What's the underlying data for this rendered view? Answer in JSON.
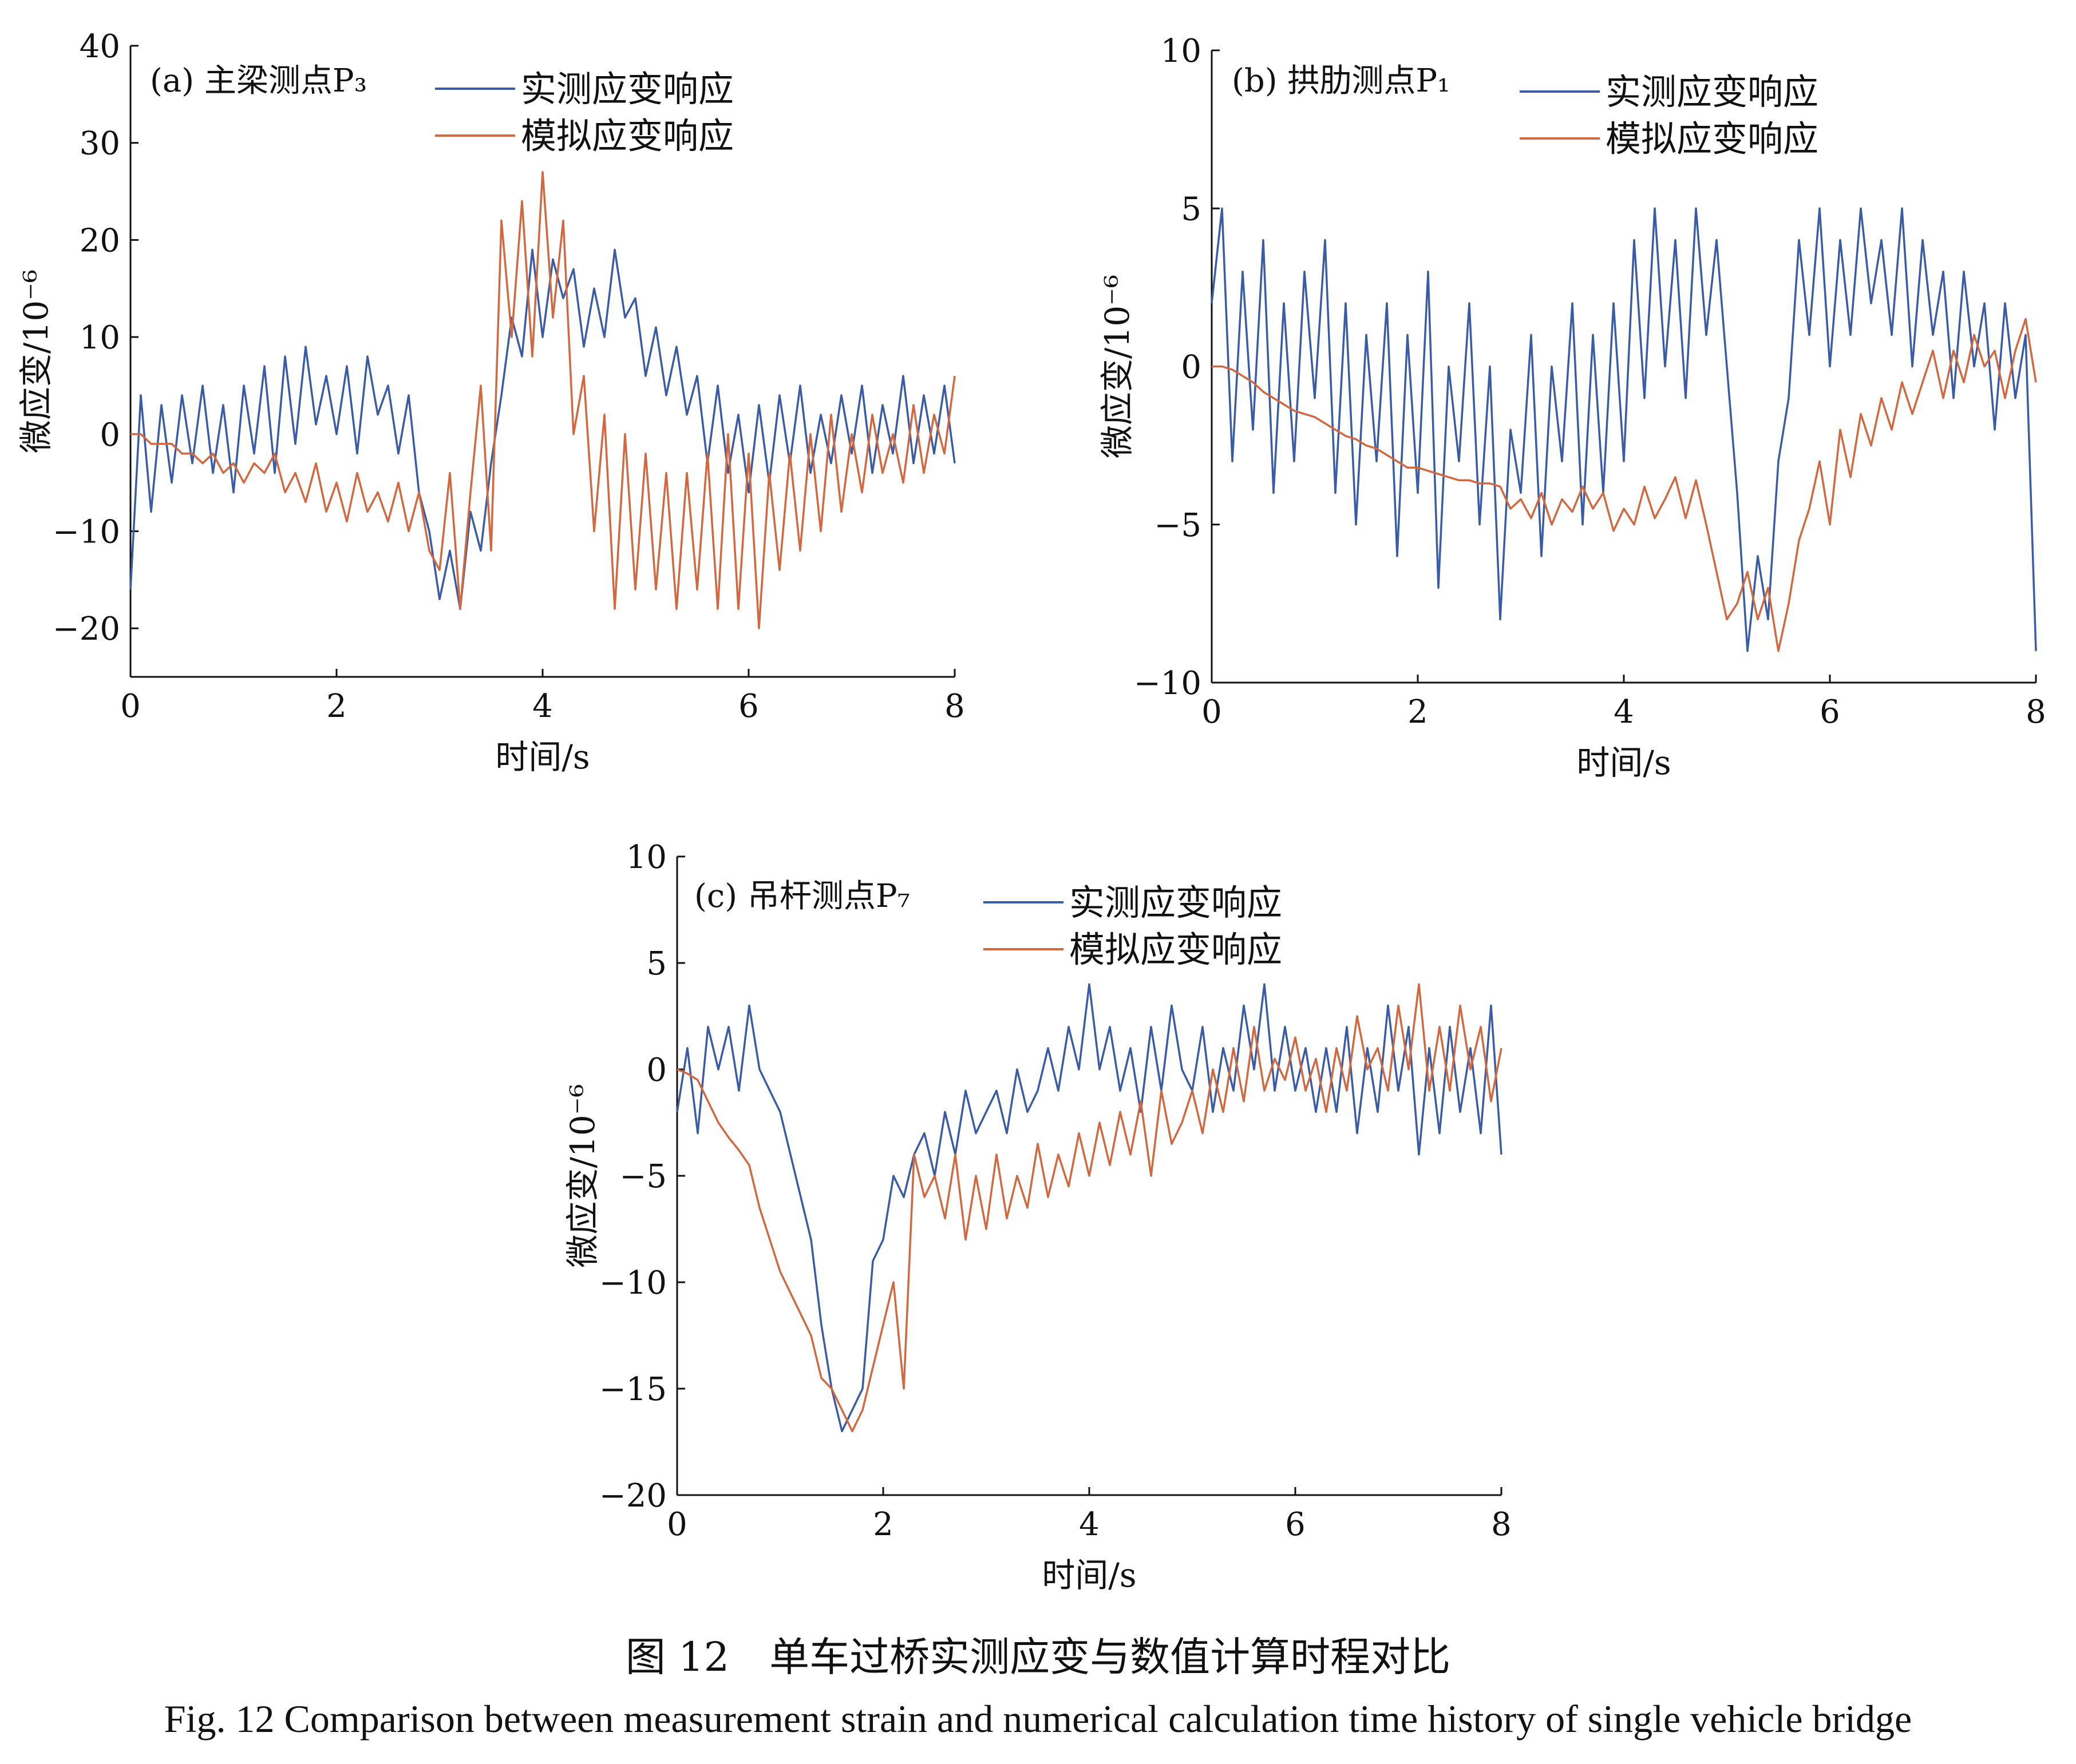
{
  "figure": {
    "caption_cn": "图 12　单车过桥实测应变与数值计算时程对比",
    "caption_en": "Fig. 12  Comparison between measurement strain and numerical calculation time history of single vehicle bridge",
    "series_colors": {
      "measured": "#3a5ba6",
      "simulated": "#d2683f"
    }
  },
  "chart_data": [
    {
      "type": "line",
      "panel": "(a)",
      "title": "(a) 主梁测点P₃",
      "xlabel": "时间/s",
      "ylabel": "微应变/10⁻⁶",
      "xlim": [
        0,
        8
      ],
      "ylim": [
        -25,
        40
      ],
      "xticks": [
        "0",
        "2",
        "4",
        "6",
        "8"
      ],
      "xtick_values": [
        0,
        2,
        4,
        6,
        8
      ],
      "yticks": [
        "−20",
        "−10",
        "0",
        "10",
        "20",
        "30",
        "40"
      ],
      "ytick_values": [
        -20,
        -10,
        0,
        10,
        20,
        30,
        40
      ],
      "legend": [
        "实测应变响应",
        "模拟应变响应"
      ],
      "legend_position": "top-center",
      "series": [
        {
          "name": "实测应变响应",
          "x": [
            0,
            0.1,
            0.2,
            0.3,
            0.4,
            0.5,
            0.6,
            0.7,
            0.8,
            0.9,
            1.0,
            1.1,
            1.2,
            1.3,
            1.4,
            1.5,
            1.6,
            1.7,
            1.8,
            1.9,
            2.0,
            2.1,
            2.2,
            2.3,
            2.4,
            2.5,
            2.6,
            2.7,
            2.8,
            2.9,
            3.0,
            3.1,
            3.2,
            3.3,
            3.4,
            3.5,
            3.6,
            3.7,
            3.8,
            3.9,
            4.0,
            4.1,
            4.2,
            4.3,
            4.4,
            4.5,
            4.6,
            4.7,
            4.8,
            4.9,
            5.0,
            5.1,
            5.2,
            5.3,
            5.4,
            5.5,
            5.6,
            5.7,
            5.8,
            5.9,
            6.0,
            6.1,
            6.2,
            6.3,
            6.4,
            6.5,
            6.6,
            6.7,
            6.8,
            6.9,
            7.0,
            7.1,
            7.2,
            7.3,
            7.4,
            7.5,
            7.6,
            7.7,
            7.8,
            7.9,
            8.0
          ],
          "values": [
            -16,
            4,
            -8,
            3,
            -5,
            4,
            -3,
            5,
            -4,
            3,
            -6,
            5,
            -2,
            7,
            -4,
            8,
            -1,
            9,
            1,
            6,
            0,
            7,
            -2,
            8,
            2,
            5,
            -2,
            4,
            -6,
            -10,
            -17,
            -12,
            -18,
            -8,
            -12,
            -3,
            4,
            12,
            8,
            19,
            10,
            18,
            14,
            17,
            9,
            15,
            10,
            19,
            12,
            14,
            6,
            11,
            4,
            9,
            2,
            6,
            -3,
            5,
            -4,
            2,
            -6,
            3,
            -5,
            4,
            -3,
            5,
            -4,
            2,
            -3,
            4,
            -2,
            5,
            -4,
            3,
            -2,
            6,
            -3,
            4,
            -2,
            5,
            -3
          ]
        },
        {
          "name": "模拟应变响应",
          "x": [
            0,
            0.1,
            0.2,
            0.3,
            0.4,
            0.5,
            0.6,
            0.7,
            0.8,
            0.9,
            1.0,
            1.1,
            1.2,
            1.3,
            1.4,
            1.5,
            1.6,
            1.7,
            1.8,
            1.9,
            2.0,
            2.1,
            2.2,
            2.3,
            2.4,
            2.5,
            2.6,
            2.7,
            2.8,
            2.9,
            3.0,
            3.1,
            3.2,
            3.3,
            3.4,
            3.5,
            3.6,
            3.7,
            3.8,
            3.9,
            4.0,
            4.1,
            4.2,
            4.3,
            4.4,
            4.5,
            4.6,
            4.7,
            4.8,
            4.9,
            5.0,
            5.1,
            5.2,
            5.3,
            5.4,
            5.5,
            5.6,
            5.7,
            5.8,
            5.9,
            6.0,
            6.1,
            6.2,
            6.3,
            6.4,
            6.5,
            6.6,
            6.7,
            6.8,
            6.9,
            7.0,
            7.1,
            7.2,
            7.3,
            7.4,
            7.5,
            7.6,
            7.7,
            7.8,
            7.9,
            8.0
          ],
          "values": [
            0,
            0,
            -1,
            -1,
            -1,
            -2,
            -2,
            -3,
            -2,
            -4,
            -3,
            -5,
            -3,
            -4,
            -2,
            -6,
            -4,
            -7,
            -3,
            -8,
            -5,
            -9,
            -4,
            -8,
            -6,
            -9,
            -5,
            -10,
            -6,
            -12,
            -14,
            -4,
            -18,
            -6,
            5,
            -12,
            22,
            10,
            24,
            8,
            27,
            12,
            22,
            0,
            6,
            -10,
            2,
            -18,
            0,
            -16,
            -2,
            -16,
            -4,
            -18,
            -4,
            -16,
            -2,
            -18,
            0,
            -18,
            -2,
            -20,
            -4,
            -14,
            -2,
            -12,
            0,
            -10,
            2,
            -8,
            0,
            -6,
            2,
            -4,
            0,
            -5,
            3,
            -4,
            2,
            -2,
            6
          ]
        }
      ]
    },
    {
      "type": "line",
      "panel": "(b)",
      "title": "(b) 拱肋测点P₁",
      "xlabel": "时间/s",
      "ylabel": "微应变/10⁻⁶",
      "xlim": [
        0,
        8
      ],
      "ylim": [
        -10,
        10
      ],
      "xticks": [
        "0",
        "2",
        "4",
        "6",
        "8"
      ],
      "xtick_values": [
        0,
        2,
        4,
        6,
        8
      ],
      "yticks": [
        "−10",
        "−5",
        "0",
        "5",
        "10"
      ],
      "ytick_values": [
        -10,
        -5,
        0,
        5,
        10
      ],
      "legend": [
        "实测应变响应",
        "模拟应变响应"
      ],
      "legend_position": "top-center",
      "series": [
        {
          "name": "实测应变响应",
          "x": [
            0,
            0.1,
            0.2,
            0.3,
            0.4,
            0.5,
            0.6,
            0.7,
            0.8,
            0.9,
            1.0,
            1.1,
            1.2,
            1.3,
            1.4,
            1.5,
            1.6,
            1.7,
            1.8,
            1.9,
            2.0,
            2.1,
            2.2,
            2.3,
            2.4,
            2.5,
            2.6,
            2.7,
            2.8,
            2.9,
            3.0,
            3.1,
            3.2,
            3.3,
            3.4,
            3.5,
            3.6,
            3.7,
            3.8,
            3.9,
            4.0,
            4.1,
            4.2,
            4.3,
            4.4,
            4.5,
            4.6,
            4.7,
            4.8,
            4.9,
            5.0,
            5.1,
            5.2,
            5.3,
            5.4,
            5.5,
            5.6,
            5.7,
            5.8,
            5.9,
            6.0,
            6.1,
            6.2,
            6.3,
            6.4,
            6.5,
            6.6,
            6.7,
            6.8,
            6.9,
            7.0,
            7.1,
            7.2,
            7.3,
            7.4,
            7.5,
            7.6,
            7.7,
            7.8,
            7.9,
            8.0
          ],
          "values": [
            2,
            5,
            -3,
            3,
            -2,
            4,
            -4,
            2,
            -3,
            3,
            -1,
            4,
            -4,
            2,
            -5,
            1,
            -3,
            2,
            -6,
            1,
            -4,
            3,
            -7,
            0,
            -3,
            2,
            -5,
            0,
            -8,
            -2,
            -4,
            1,
            -6,
            0,
            -3,
            2,
            -5,
            1,
            -4,
            2,
            -3,
            4,
            -1,
            5,
            0,
            4,
            -1,
            5,
            1,
            4,
            0,
            -4,
            -9,
            -6,
            -8,
            -3,
            -1,
            4,
            1,
            5,
            0,
            4,
            1,
            5,
            2,
            4,
            1,
            5,
            0,
            4,
            1,
            3,
            -1,
            3,
            0,
            2,
            -2,
            2,
            -1,
            1,
            -9
          ]
        },
        {
          "name": "模拟应变响应",
          "x": [
            0,
            0.1,
            0.2,
            0.3,
            0.4,
            0.5,
            0.6,
            0.7,
            0.8,
            0.9,
            1.0,
            1.1,
            1.2,
            1.3,
            1.4,
            1.5,
            1.6,
            1.7,
            1.8,
            1.9,
            2.0,
            2.1,
            2.2,
            2.3,
            2.4,
            2.5,
            2.6,
            2.7,
            2.8,
            2.9,
            3.0,
            3.1,
            3.2,
            3.3,
            3.4,
            3.5,
            3.6,
            3.7,
            3.8,
            3.9,
            4.0,
            4.1,
            4.2,
            4.3,
            4.4,
            4.5,
            4.6,
            4.7,
            4.8,
            4.9,
            5.0,
            5.1,
            5.2,
            5.3,
            5.4,
            5.5,
            5.6,
            5.7,
            5.8,
            5.9,
            6.0,
            6.1,
            6.2,
            6.3,
            6.4,
            6.5,
            6.6,
            6.7,
            6.8,
            6.9,
            7.0,
            7.1,
            7.2,
            7.3,
            7.4,
            7.5,
            7.6,
            7.7,
            7.8,
            7.9,
            8.0
          ],
          "values": [
            0,
            0,
            -0.1,
            -0.3,
            -0.5,
            -0.8,
            -1.0,
            -1.2,
            -1.4,
            -1.5,
            -1.6,
            -1.8,
            -2.0,
            -2.2,
            -2.3,
            -2.5,
            -2.6,
            -2.8,
            -3.0,
            -3.2,
            -3.2,
            -3.3,
            -3.4,
            -3.5,
            -3.6,
            -3.6,
            -3.7,
            -3.7,
            -3.8,
            -4.5,
            -4.2,
            -4.8,
            -4.0,
            -5.0,
            -4.2,
            -4.6,
            -3.8,
            -4.5,
            -4.0,
            -5.2,
            -4.5,
            -5.0,
            -3.8,
            -4.8,
            -4.2,
            -3.5,
            -4.8,
            -3.6,
            -5.0,
            -6.5,
            -8.0,
            -7.5,
            -6.5,
            -8.0,
            -7.0,
            -9.0,
            -7.5,
            -5.5,
            -4.5,
            -3.0,
            -5.0,
            -2.0,
            -3.5,
            -1.5,
            -2.5,
            -1.0,
            -2.0,
            -0.5,
            -1.5,
            -0.5,
            0.5,
            -1.0,
            0.5,
            -0.5,
            1.0,
            0,
            0.5,
            -1.0,
            0.5,
            1.5,
            -0.5
          ]
        }
      ]
    },
    {
      "type": "line",
      "panel": "(c)",
      "title": "(c) 吊杆测点P₇",
      "xlabel": "时间/s",
      "ylabel": "微应变/10⁻⁶",
      "xlim": [
        0,
        8
      ],
      "ylim": [
        -20,
        10
      ],
      "xticks": [
        "0",
        "2",
        "4",
        "6",
        "8"
      ],
      "xtick_values": [
        0,
        2,
        4,
        6,
        8
      ],
      "yticks": [
        "−20",
        "−15",
        "−10",
        "−5",
        "0",
        "5",
        "10"
      ],
      "ytick_values": [
        -20,
        -15,
        -10,
        -5,
        0,
        5,
        10
      ],
      "legend": [
        "实测应变响应",
        "模拟应变响应"
      ],
      "legend_position": "top-center",
      "series": [
        {
          "name": "实测应变响应",
          "x": [
            0,
            0.1,
            0.2,
            0.3,
            0.4,
            0.5,
            0.6,
            0.7,
            0.8,
            0.9,
            1.0,
            1.1,
            1.2,
            1.3,
            1.4,
            1.5,
            1.6,
            1.7,
            1.8,
            1.9,
            2.0,
            2.1,
            2.2,
            2.3,
            2.4,
            2.5,
            2.6,
            2.7,
            2.8,
            2.9,
            3.0,
            3.1,
            3.2,
            3.3,
            3.4,
            3.5,
            3.6,
            3.7,
            3.8,
            3.9,
            4.0,
            4.1,
            4.2,
            4.3,
            4.4,
            4.5,
            4.6,
            4.7,
            4.8,
            4.9,
            5.0,
            5.1,
            5.2,
            5.3,
            5.4,
            5.5,
            5.6,
            5.7,
            5.8,
            5.9,
            6.0,
            6.1,
            6.2,
            6.3,
            6.4,
            6.5,
            6.6,
            6.7,
            6.8,
            6.9,
            7.0,
            7.1,
            7.2,
            7.3,
            7.4,
            7.5,
            7.6,
            7.7,
            7.8,
            7.9,
            8.0
          ],
          "values": [
            -2,
            1,
            -3,
            2,
            0,
            2,
            -1,
            3,
            0,
            -1,
            -2,
            -4,
            -6,
            -8,
            -12,
            -15,
            -17,
            -16,
            -15,
            -9,
            -8,
            -5,
            -6,
            -4,
            -3,
            -5,
            -2,
            -4,
            -1,
            -3,
            -2,
            -1,
            -3,
            0,
            -2,
            -1,
            1,
            -1,
            2,
            0,
            4,
            0,
            2,
            -1,
            1,
            -2,
            2,
            -1,
            3,
            0,
            -1,
            2,
            -2,
            1,
            -1,
            3,
            0,
            4,
            -1,
            2,
            -1,
            1,
            -2,
            1,
            -2,
            2,
            -3,
            1,
            -2,
            3,
            -1,
            2,
            -4,
            1,
            -3,
            2,
            -2,
            1,
            -3,
            3,
            -4
          ]
        },
        {
          "name": "模拟应变响应",
          "x": [
            0,
            0.1,
            0.2,
            0.3,
            0.4,
            0.5,
            0.6,
            0.7,
            0.8,
            0.9,
            1.0,
            1.1,
            1.2,
            1.3,
            1.4,
            1.5,
            1.6,
            1.7,
            1.8,
            1.9,
            2.0,
            2.1,
            2.2,
            2.3,
            2.4,
            2.5,
            2.6,
            2.7,
            2.8,
            2.9,
            3.0,
            3.1,
            3.2,
            3.3,
            3.4,
            3.5,
            3.6,
            3.7,
            3.8,
            3.9,
            4.0,
            4.1,
            4.2,
            4.3,
            4.4,
            4.5,
            4.6,
            4.7,
            4.8,
            4.9,
            5.0,
            5.1,
            5.2,
            5.3,
            5.4,
            5.5,
            5.6,
            5.7,
            5.8,
            5.9,
            6.0,
            6.1,
            6.2,
            6.3,
            6.4,
            6.5,
            6.6,
            6.7,
            6.8,
            6.9,
            7.0,
            7.1,
            7.2,
            7.3,
            7.4,
            7.5,
            7.6,
            7.7,
            7.8,
            7.9,
            8.0
          ],
          "values": [
            0,
            -0.2,
            -0.5,
            -1.5,
            -2.5,
            -3.2,
            -3.8,
            -4.5,
            -6.5,
            -8.0,
            -9.5,
            -10.5,
            -11.5,
            -12.5,
            -14.5,
            -15.0,
            -16.0,
            -17.0,
            -16.0,
            -14.0,
            -12.0,
            -10.0,
            -15.0,
            -4.0,
            -6.0,
            -5.0,
            -7.0,
            -4.0,
            -8.0,
            -5.0,
            -7.5,
            -4.0,
            -7.0,
            -5.0,
            -6.5,
            -3.5,
            -6.0,
            -4.0,
            -5.5,
            -3.0,
            -5.0,
            -2.5,
            -4.5,
            -2.0,
            -4.0,
            -1.5,
            -5.0,
            -1.0,
            -3.5,
            -2.5,
            -1.0,
            -3.0,
            0,
            -2.0,
            1.0,
            -1.5,
            2.0,
            -1.0,
            0.5,
            -0.5,
            1.5,
            -1.0,
            0.5,
            -2.0,
            1.0,
            -1.0,
            2.5,
            0,
            1.0,
            -1.0,
            3.0,
            0,
            4.0,
            -1.0,
            2.0,
            -1.0,
            3.0,
            0,
            2.0,
            -1.5,
            1.0
          ]
        }
      ]
    }
  ]
}
